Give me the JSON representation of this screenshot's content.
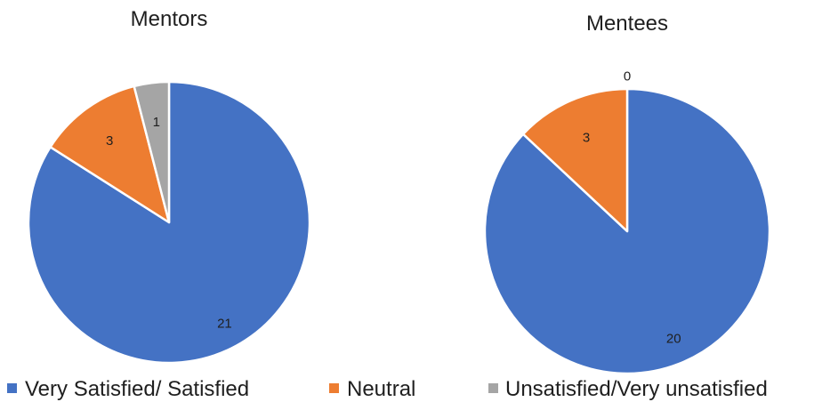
{
  "chart_data": [
    {
      "type": "pie",
      "title": "Mentors",
      "categories": [
        "Very Satisfied/ Satisfied",
        "Neutral",
        "Unsatisfied/Very unsatisfied"
      ],
      "values": [
        21,
        3,
        1
      ],
      "data_labels": [
        "21",
        "3",
        "1"
      ],
      "colors": [
        "#4472C4",
        "#ED7D31",
        "#A5A5A5"
      ]
    },
    {
      "type": "pie",
      "title": "Mentees",
      "categories": [
        "Very Satisfied/ Satisfied",
        "Neutral",
        "Unsatisfied/Very unsatisfied"
      ],
      "values": [
        20,
        3,
        0
      ],
      "data_labels": [
        "20",
        "3",
        "0"
      ],
      "colors": [
        "#4472C4",
        "#ED7D31",
        "#A5A5A5"
      ]
    }
  ],
  "legend": {
    "placement": "bottom",
    "items": [
      {
        "label": "Very Satisfied/ Satisfied",
        "color": "#4472C4"
      },
      {
        "label": "Neutral",
        "color": "#ED7D31"
      },
      {
        "label": "Unsatisfied/Very unsatisfied",
        "color": "#A5A5A5"
      }
    ]
  }
}
